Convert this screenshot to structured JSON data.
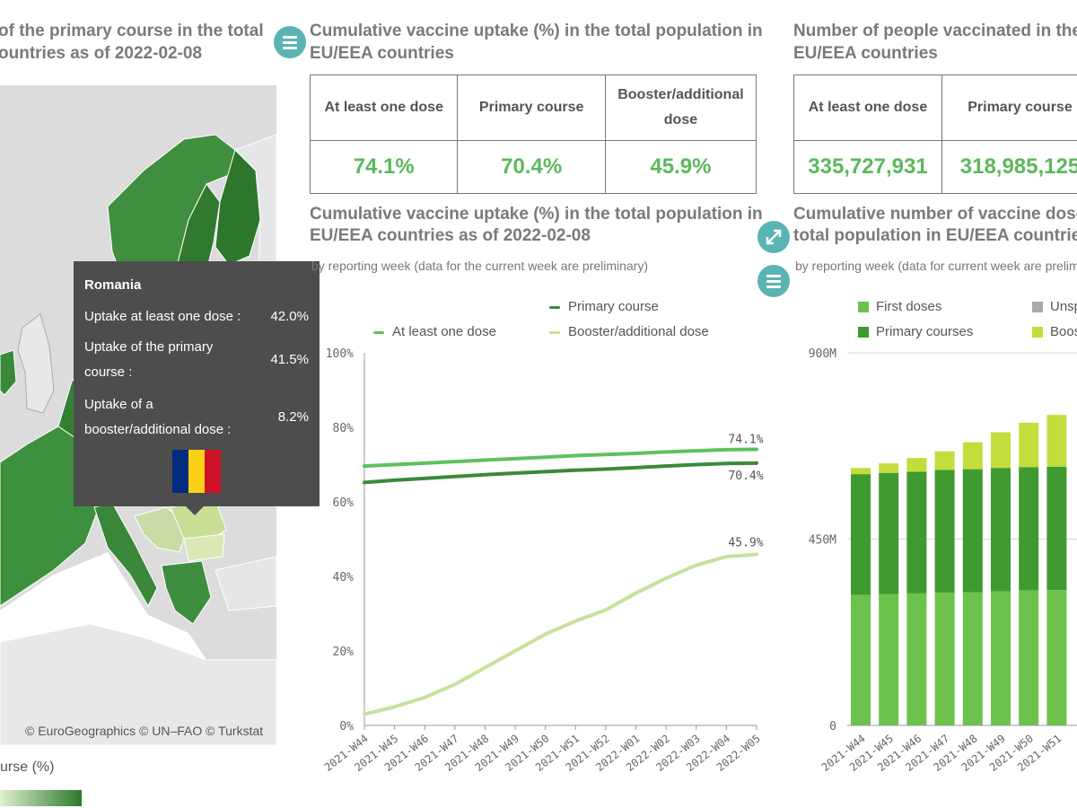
{
  "map_panel": {
    "title_line1": "of the primary course in the total",
    "title_line2": "ountries as of 2022-02-08",
    "attribution": "© EuroGeographics © UN–FAO © Turkstat",
    "legend_label": "urse (%)",
    "tooltip": {
      "country": "Romania",
      "row1_label": "Uptake at least one dose :",
      "row1_value": "42.0%",
      "row2_label_line1": "Uptake of the primary",
      "row2_label_line2": "course :",
      "row2_value": "41.5%",
      "row3_label_line1": "Uptake of a",
      "row3_label_line2": "booster/additional dose :",
      "row3_value": "8.2%",
      "flag_colors": [
        "#002B7F",
        "#FCD116",
        "#CE1126"
      ]
    }
  },
  "uptake_panel": {
    "title_line1": "Cumulative vaccine uptake (%) in the total population in",
    "title_line2": "EU/EEA countries",
    "headers": {
      "first": "At least one dose",
      "primary": "Primary course",
      "booster_line1": "Booster/additional",
      "booster_line2": "dose"
    },
    "values": {
      "first": "74.1%",
      "primary": "70.4%",
      "booster": "45.9%"
    },
    "chart_title_line1": "Cumulative vaccine uptake (%) in the total population in",
    "chart_title_line2": "EU/EEA countries as of 2022-02-08",
    "chart_subtitle": "by reporting week (data for the current week are preliminary)"
  },
  "people_panel": {
    "title_line1": "Number of people vaccinated in the tota",
    "title_line2": "EU/EEA countries",
    "headers": {
      "first": "At least one dose",
      "primary": "Primary course"
    },
    "values": {
      "first": "335,727,931",
      "primary": "318,985,125"
    },
    "chart_title_line1": "Cumulative number of vaccine doses ac",
    "chart_title_line2": "total population in EU/EEA countries as",
    "chart_subtitle": "by reporting week (data for current week are prelim"
  },
  "colors": {
    "first": "#5cc25c",
    "primary": "#3a8a3a",
    "booster": "#c8e09a",
    "bar_first": "#6cc24a",
    "bar_primary": "#3f9a30",
    "bar_booster": "#c4dd3c",
    "bar_unspecified": "#aaaaaa",
    "accent": "#5bb3b3"
  },
  "chart_data": [
    {
      "type": "line",
      "title": "Cumulative vaccine uptake (%) in the total population in EU/EEA countries as of 2022-02-08",
      "x": [
        "2021-W44",
        "2021-W45",
        "2021-W46",
        "2021-W47",
        "2021-W48",
        "2021-W49",
        "2021-W50",
        "2021-W51",
        "2021-W52",
        "2022-W01",
        "2022-W02",
        "2022-W03",
        "2022-W04",
        "2022-W05"
      ],
      "ylim": [
        0,
        100
      ],
      "yticks": [
        "0%",
        "20%",
        "40%",
        "60%",
        "80%",
        "100%"
      ],
      "series": [
        {
          "name": "At least one dose",
          "values": [
            69.6,
            70.0,
            70.4,
            70.8,
            71.2,
            71.6,
            72.0,
            72.4,
            72.7,
            73.0,
            73.4,
            73.7,
            74.0,
            74.1
          ],
          "end_label": "74.1%"
        },
        {
          "name": "Primary course",
          "values": [
            65.2,
            65.8,
            66.3,
            66.8,
            67.3,
            67.7,
            68.1,
            68.5,
            68.8,
            69.2,
            69.6,
            70.0,
            70.3,
            70.4
          ],
          "end_label": "70.4%"
        },
        {
          "name": "Booster/additional dose",
          "values": [
            3.0,
            5.0,
            7.5,
            11.0,
            15.5,
            20.0,
            24.5,
            28.0,
            31.0,
            35.5,
            39.5,
            43.0,
            45.3,
            45.9
          ],
          "end_label": "45.9%"
        }
      ],
      "legend": [
        "At least one dose",
        "Primary course",
        "Booster/additional dose"
      ]
    },
    {
      "type": "bar",
      "title": "Cumulative number of vaccine doses administered in the total population in EU/EEA countries",
      "categories": [
        "2021-W44",
        "2021-W45",
        "2021-W46",
        "2021-W47",
        "2021-W48",
        "2021-W49",
        "2021-W50",
        "2021-W51"
      ],
      "yticks": [
        "0",
        "450M",
        "900M"
      ],
      "ylim": [
        0,
        900
      ],
      "series": [
        {
          "name": "First doses",
          "values": [
            315,
            317,
            319,
            321,
            322,
            324,
            326,
            327
          ]
        },
        {
          "name": "Primary courses",
          "values": [
            292,
            293,
            294,
            296,
            297,
            298,
            298,
            298
          ]
        },
        {
          "name": "Booster doses",
          "values": [
            15,
            23,
            33,
            45,
            65,
            86,
            107,
            125
          ]
        }
      ],
      "legend": [
        "First doses",
        "Unsp",
        "Primary courses",
        "Boos"
      ]
    }
  ]
}
